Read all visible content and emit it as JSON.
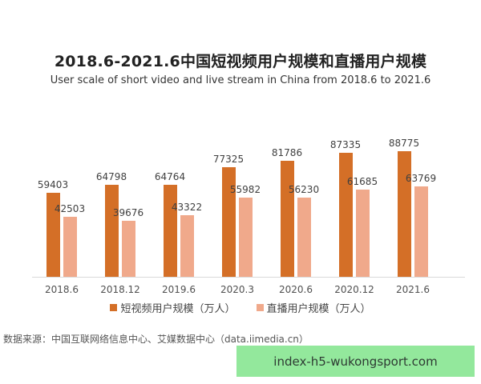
{
  "chart_data": {
    "type": "bar",
    "title": "2018.6-2021.6中国短视频用户规模和直播用户规模",
    "subtitle": "User scale of short video and live stream in China from 2018.6 to 2021.6",
    "categories": [
      "2018.6",
      "2018.12",
      "2019.6",
      "2020.3",
      "2020.6",
      "2020.12",
      "2021.6"
    ],
    "series": [
      {
        "name": "短视频用户规模（万人）",
        "color": "#d46f27",
        "values": [
          59403,
          64798,
          64764,
          77325,
          81786,
          87335,
          88775
        ]
      },
      {
        "name": "直播用户规模（万人）",
        "color": "#f0a98b",
        "values": [
          42503,
          39676,
          43322,
          55982,
          56230,
          61685,
          63769
        ]
      }
    ],
    "xlabel": "",
    "ylabel": "",
    "ylim": [
      0,
      100000
    ],
    "grid": false,
    "legend_position": "bottom",
    "data_labels": true
  },
  "source": "数据来源：中国互联网络信息中心、艾媒数据中心（data.iimedia.cn）",
  "watermark": "index-h5-wukongsport.com"
}
